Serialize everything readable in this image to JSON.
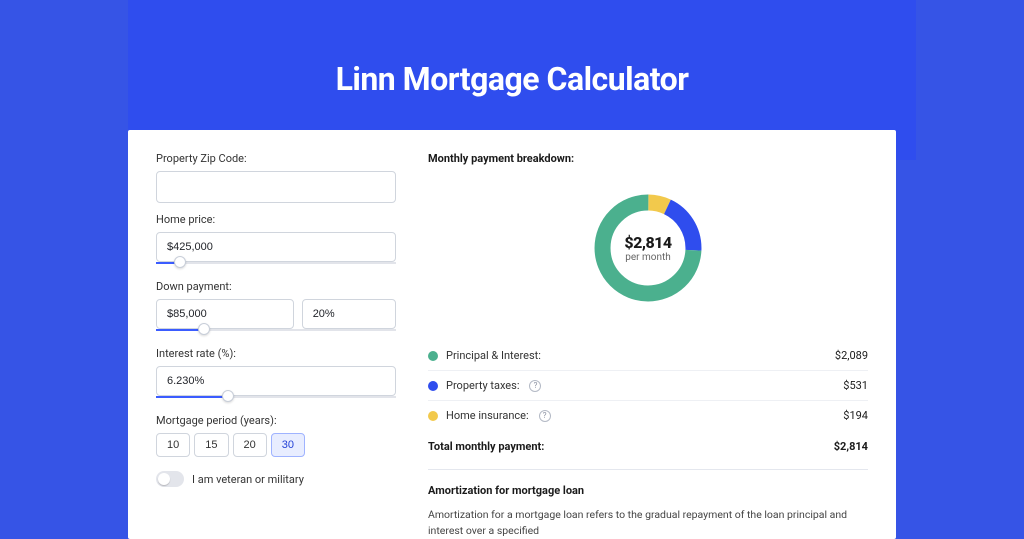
{
  "page": {
    "title": "Linn Mortgage Calculator",
    "bg_color": "#3654e6",
    "stripe_color": "#2f4dee",
    "card_color": "#ffffff",
    "text_color": "#1a1a1a",
    "accent_color": "#3b5cff"
  },
  "form": {
    "zip": {
      "label": "Property Zip Code:",
      "value": ""
    },
    "home_price": {
      "label": "Home price:",
      "value": "$425,000",
      "slider_pct": 10
    },
    "down_payment": {
      "label": "Down payment:",
      "amount": "$85,000",
      "percent": "20%",
      "slider_pct": 20
    },
    "interest_rate": {
      "label": "Interest rate (%):",
      "value": "6.230%",
      "slider_pct": 30
    },
    "period": {
      "label": "Mortgage period (years):",
      "options": [
        "10",
        "15",
        "20",
        "30"
      ],
      "selected_index": 3
    },
    "veteran": {
      "label": "I am veteran or military",
      "checked": false
    }
  },
  "breakdown": {
    "title": "Monthly payment breakdown:",
    "center_value": "$2,814",
    "center_label": "per month",
    "donut": {
      "stroke_width": 16,
      "bg_color": "#ffffff",
      "segments": [
        {
          "key": "principal_interest",
          "color": "#4bb08e",
          "pct": 74.2
        },
        {
          "key": "property_taxes",
          "color": "#2f4dee",
          "pct": 18.9
        },
        {
          "key": "home_insurance",
          "color": "#f2c94c",
          "pct": 6.9
        }
      ]
    },
    "legend": [
      {
        "swatch": "#4bb08e",
        "label": "Principal & Interest:",
        "help": false,
        "value": "$2,089"
      },
      {
        "swatch": "#2f4dee",
        "label": "Property taxes:",
        "help": true,
        "value": "$531"
      },
      {
        "swatch": "#f2c94c",
        "label": "Home insurance:",
        "help": true,
        "value": "$194"
      }
    ],
    "total": {
      "label": "Total monthly payment:",
      "value": "$2,814"
    }
  },
  "amortization": {
    "title": "Amortization for mortgage loan",
    "text": "Amortization for a mortgage loan refers to the gradual repayment of the loan principal and interest over a specified"
  }
}
